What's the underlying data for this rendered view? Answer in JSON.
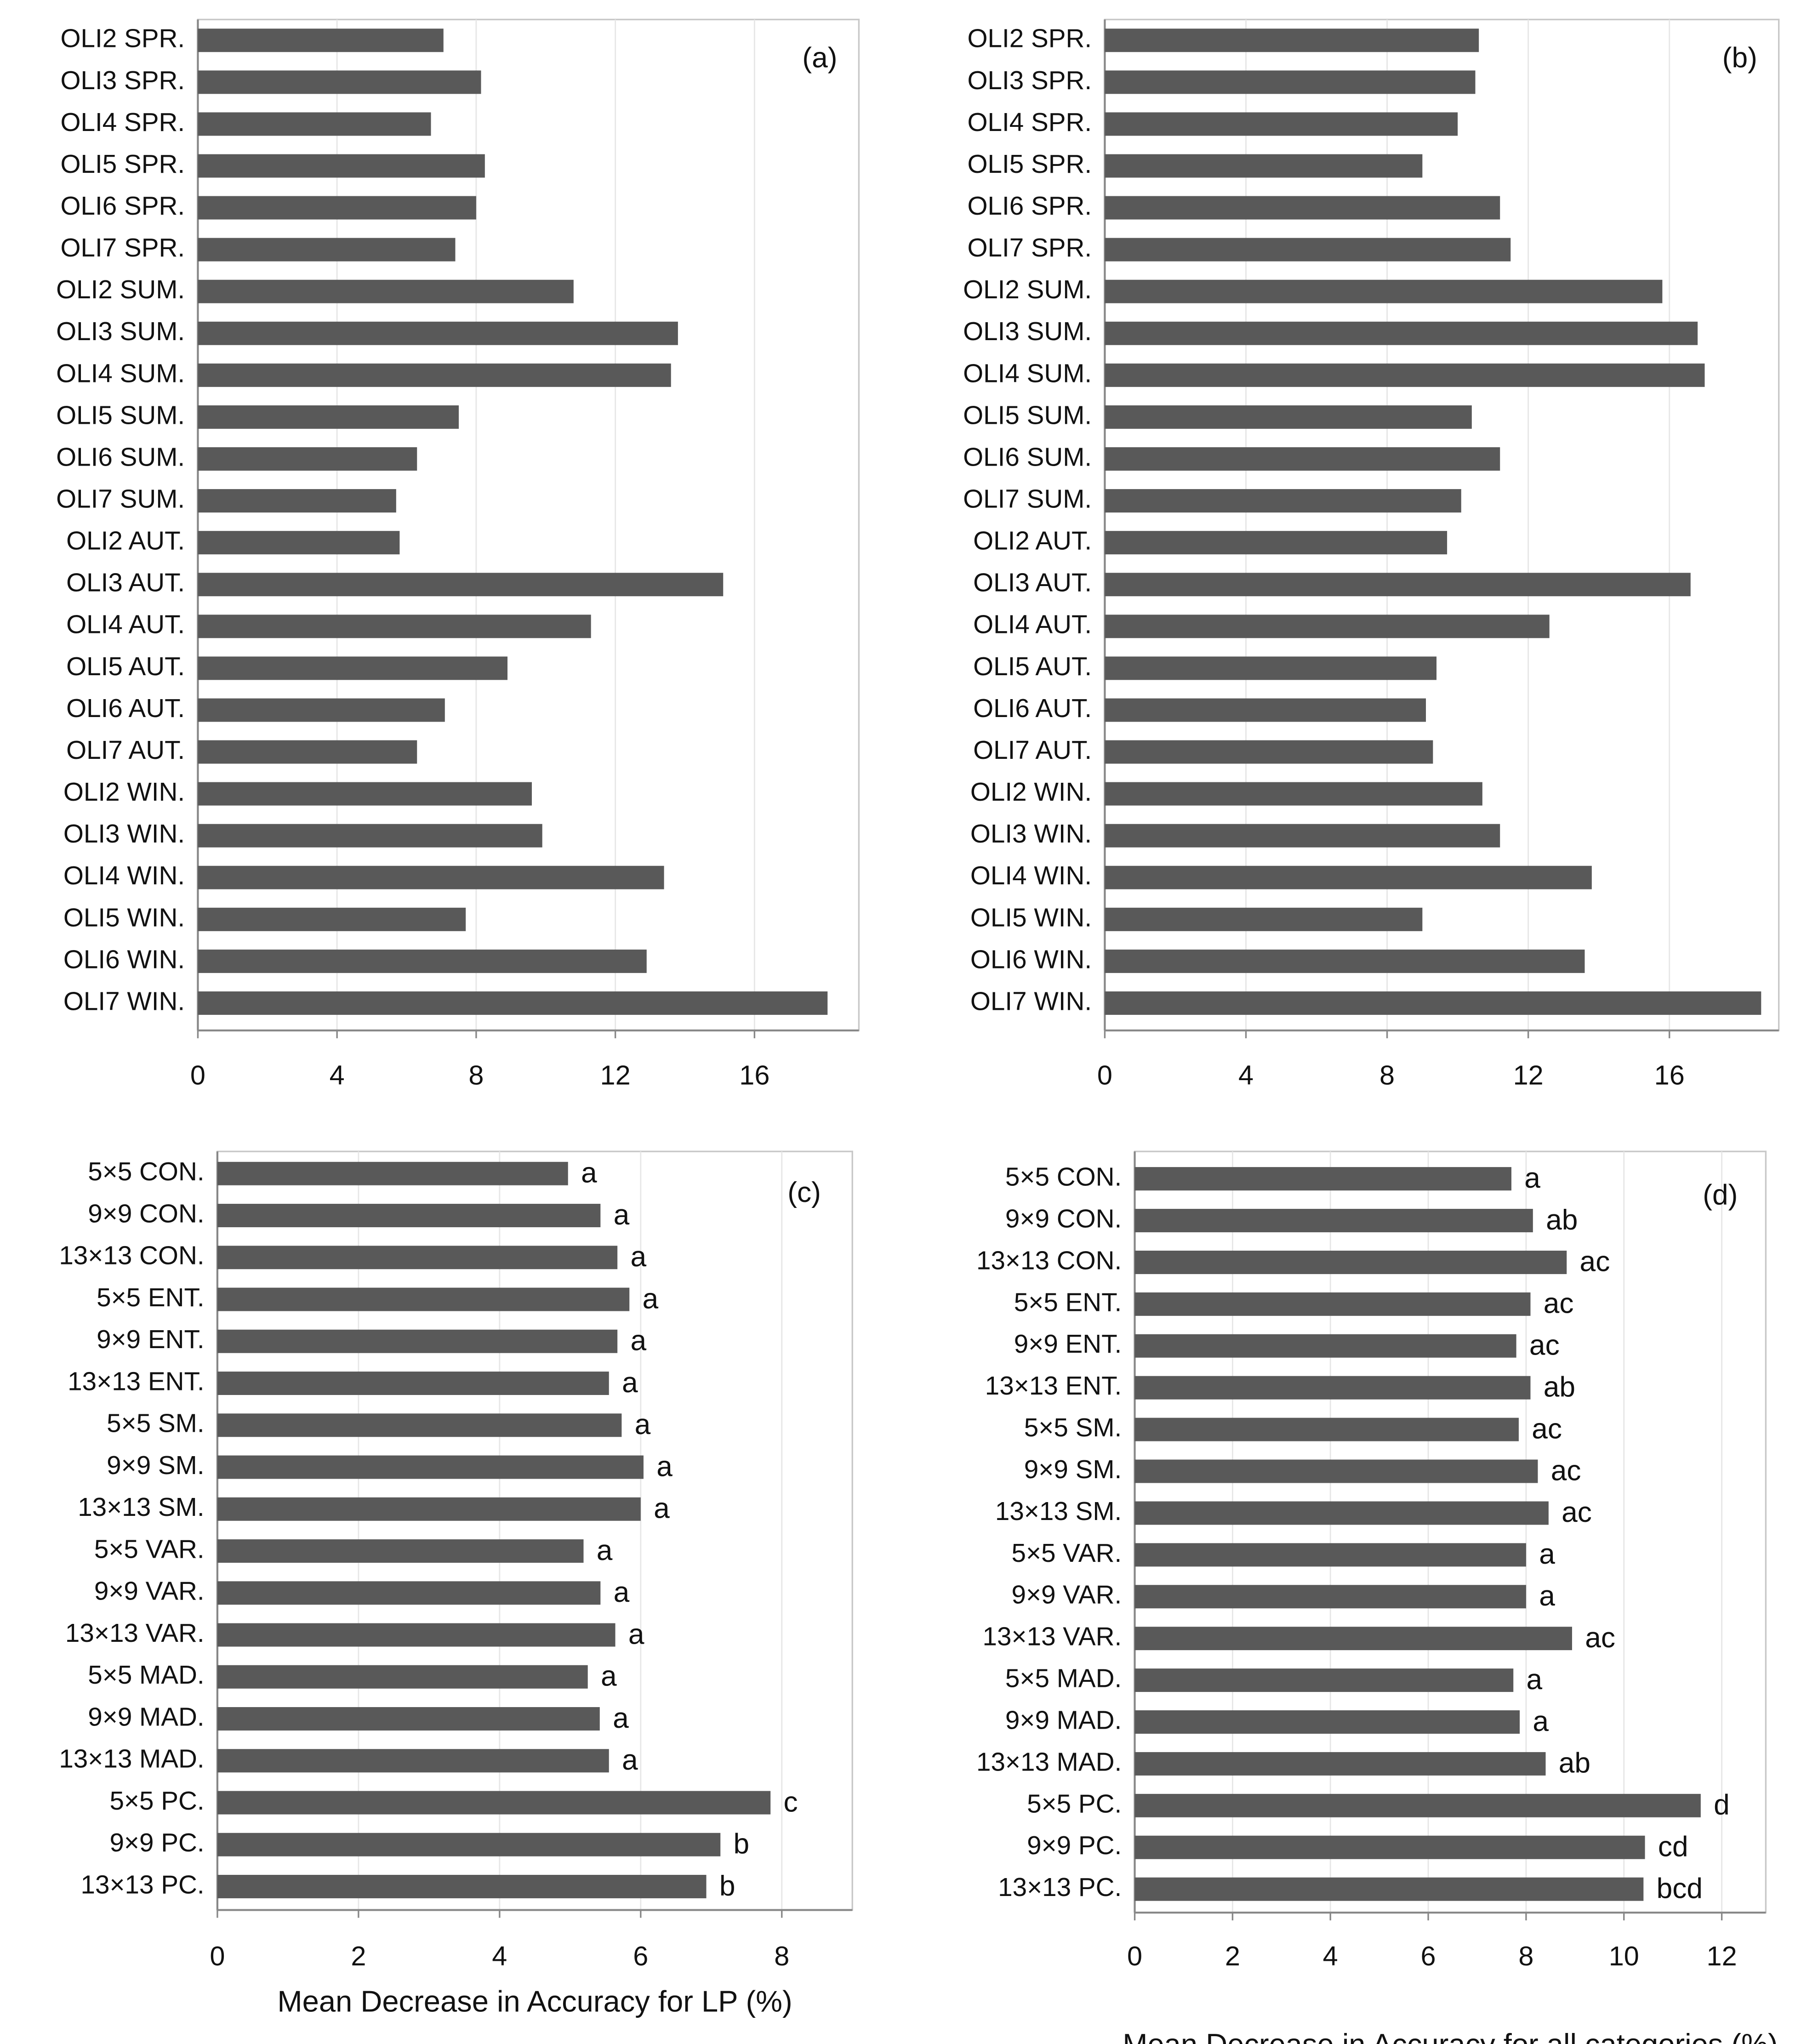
{
  "chart_data": [
    {
      "type": "bar",
      "orientation": "horizontal",
      "panel_label": "(a)",
      "categories": [
        "OLI2 SPR.",
        "OLI3 SPR.",
        "OLI4 SPR.",
        "OLI5 SPR.",
        "OLI6 SPR.",
        "OLI7 SPR.",
        "OLI2 SUM.",
        "OLI3 SUM.",
        "OLI4 SUM.",
        "OLI5 SUM.",
        "OLI6 SUM.",
        "OLI7 SUM.",
        "OLI2 AUT.",
        "OLI3 AUT.",
        "OLI4 AUT.",
        "OLI5 AUT.",
        "OLI6 AUT.",
        "OLI7 AUT.",
        "OLI2 WIN.",
        "OLI3 WIN.",
        "OLI4 WIN.",
        "OLI5 WIN.",
        "OLI6 WIN.",
        "OLI7 WIN."
      ],
      "values": [
        7.06,
        8.14,
        6.7,
        8.25,
        8.0,
        7.4,
        10.8,
        13.8,
        13.6,
        7.5,
        6.3,
        5.7,
        5.8,
        15.1,
        11.3,
        8.9,
        7.1,
        6.3,
        9.6,
        9.9,
        13.4,
        7.7,
        12.9,
        18.1
      ],
      "color": "#595959",
      "xlim": [
        0,
        19
      ],
      "xticks": [
        0,
        4,
        8,
        12,
        16
      ],
      "grid": true
    },
    {
      "type": "bar",
      "orientation": "horizontal",
      "panel_label": "(b)",
      "categories": [
        "OLI2 SPR.",
        "OLI3 SPR.",
        "OLI4 SPR.",
        "OLI5 SPR.",
        "OLI6 SPR.",
        "OLI7 SPR.",
        "OLI2 SUM.",
        "OLI3 SUM.",
        "OLI4 SUM.",
        "OLI5 SUM.",
        "OLI6 SUM.",
        "OLI7 SUM.",
        "OLI2 AUT.",
        "OLI3 AUT.",
        "OLI4 AUT.",
        "OLI5 AUT.",
        "OLI6 AUT.",
        "OLI7 AUT.",
        "OLI2 WIN.",
        "OLI3 WIN.",
        "OLI4 WIN.",
        "OLI5 WIN.",
        "OLI6 WIN.",
        "OLI7 WIN."
      ],
      "values": [
        10.6,
        10.5,
        10.0,
        9.0,
        11.2,
        11.5,
        15.8,
        16.8,
        17.0,
        10.4,
        11.2,
        10.1,
        9.7,
        16.6,
        12.6,
        9.4,
        9.1,
        9.3,
        10.7,
        11.2,
        13.8,
        9.0,
        13.6,
        18.6
      ],
      "color": "#595959",
      "xlim": [
        0,
        19.1
      ],
      "xticks": [
        0,
        4,
        8,
        12,
        16
      ],
      "grid": true
    },
    {
      "type": "bar",
      "orientation": "horizontal",
      "panel_label": "(c)",
      "x_label": "Mean Decrease in Accuracy for LP (%)",
      "categories": [
        "5×5 CON.",
        "9×9 CON.",
        "13×13 CON.",
        "5×5 ENT.",
        "9×9 ENT.",
        "13×13 ENT.",
        "5×5 SM.",
        "9×9 SM.",
        "13×13 SM.",
        "5×5 VAR.",
        "9×9 VAR.",
        "13×13 VAR.",
        "5×5 MAD.",
        "9×9 MAD.",
        "13×13 MAD.",
        "5×5 PC.",
        "9×9 PC.",
        "13×13 PC."
      ],
      "values": [
        4.97,
        5.43,
        5.67,
        5.84,
        5.67,
        5.55,
        5.73,
        6.04,
        6.0,
        5.19,
        5.43,
        5.64,
        5.25,
        5.42,
        5.55,
        7.84,
        7.13,
        6.93
      ],
      "group_labels": [
        "a",
        "a",
        "a",
        "a",
        "a",
        "a",
        "a",
        "a",
        "a",
        "a",
        "a",
        "a",
        "a",
        "a",
        "a",
        "c",
        "b",
        "b"
      ],
      "color": "#595959",
      "xlim": [
        0,
        9
      ],
      "xticks": [
        0,
        2,
        4,
        6,
        8
      ],
      "grid": true
    },
    {
      "type": "bar",
      "orientation": "horizontal",
      "panel_label": "(d)",
      "x_label": "Mean Decrease in Accuracy for all categories (%)",
      "categories": [
        "5×5 CON.",
        "9×9 CON.",
        "13×13 CON.",
        "5×5 ENT.",
        "9×9 ENT.",
        "13×13 ENT.",
        "5×5 SM.",
        "9×9 SM.",
        "13×13 SM.",
        "5×5 VAR.",
        "9×9 VAR.",
        "13×13 VAR.",
        "5×5 MAD.",
        "9×9 MAD.",
        "13×13 MAD.",
        "5×5 PC.",
        "9×9 PC.",
        "13×13 PC."
      ],
      "values": [
        7.7,
        8.14,
        8.83,
        8.09,
        7.8,
        8.09,
        7.85,
        8.24,
        8.46,
        8.0,
        8.0,
        8.94,
        7.74,
        7.87,
        8.4,
        11.57,
        10.43,
        10.4
      ],
      "group_labels": [
        "a",
        "ab",
        "ac",
        "ac",
        "ac",
        "ab",
        "ac",
        "ac",
        "ac",
        "a",
        "a",
        "ac",
        "a",
        "a",
        "ab",
        "d",
        "cd",
        "bcd"
      ],
      "color": "#595959",
      "xlim": [
        0,
        12.9
      ],
      "xticks": [
        0,
        2,
        4,
        6,
        8,
        10,
        12
      ],
      "grid": true
    }
  ]
}
